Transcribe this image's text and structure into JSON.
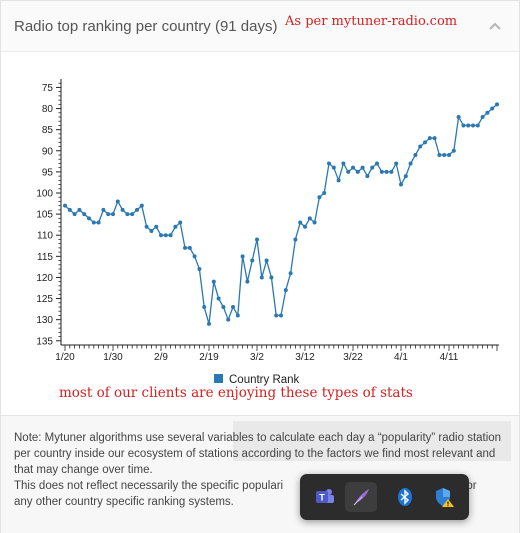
{
  "header": {
    "title": "Radio top ranking per country (91 days)",
    "annotation": "As per mytuner-radio.com"
  },
  "chart_annotation": "most of our clients are enjoying these types of stats",
  "note": {
    "line1": "Note: Mytuner algorithms use several variables to calculate each day a “popularity” radio station per country inside our ecosystem of stations according to the factors we find most relevant and that may change over time.",
    "line2_start": "This does not reflect necessarily the specific populari",
    "line2_end": "y, or",
    "line3": "any other country specific ranking systems."
  },
  "taskbar": {
    "icons": [
      "teams-icon",
      "feather-pen-icon",
      "bluetooth-icon",
      "security-warning-icon"
    ]
  },
  "colors": {
    "series": "#2a78b4",
    "annotation": "#d31f1f"
  },
  "chart_data": {
    "type": "line",
    "xlabel": "",
    "ylabel": "",
    "y_reversed": true,
    "ylim": [
      73,
      136
    ],
    "yticks": [
      75,
      80,
      85,
      90,
      95,
      100,
      105,
      110,
      115,
      120,
      125,
      130,
      135
    ],
    "xtick_labels": [
      "1/20",
      "1/30",
      "2/9",
      "2/19",
      "3/2",
      "3/12",
      "3/22",
      "4/1",
      "4/11"
    ],
    "legend": "bottom-center",
    "grid": false,
    "series": [
      {
        "name": "Country Rank",
        "x": [
          "1/20",
          "1/21",
          "1/22",
          "1/23",
          "1/24",
          "1/25",
          "1/26",
          "1/27",
          "1/28",
          "1/29",
          "1/30",
          "1/31",
          "2/1",
          "2/2",
          "2/3",
          "2/4",
          "2/5",
          "2/6",
          "2/7",
          "2/8",
          "2/9",
          "2/10",
          "2/11",
          "2/12",
          "2/13",
          "2/14",
          "2/15",
          "2/16",
          "2/17",
          "2/18",
          "2/19",
          "2/20",
          "2/21",
          "2/22",
          "2/23",
          "2/24",
          "2/25",
          "2/26",
          "2/27",
          "2/28",
          "2/29",
          "3/1",
          "3/2",
          "3/3",
          "3/4",
          "3/5",
          "3/6",
          "3/7",
          "3/8",
          "3/9",
          "3/10",
          "3/11",
          "3/12",
          "3/13",
          "3/14",
          "3/15",
          "3/16",
          "3/17",
          "3/18",
          "3/19",
          "3/20",
          "3/21",
          "3/22",
          "3/23",
          "3/24",
          "3/25",
          "3/26",
          "3/27",
          "3/28",
          "3/29",
          "3/30",
          "3/31",
          "4/1",
          "4/2",
          "4/3",
          "4/4",
          "4/5",
          "4/6",
          "4/7",
          "4/8",
          "4/9",
          "4/10",
          "4/11",
          "4/12",
          "4/13",
          "4/14",
          "4/15",
          "4/16",
          "4/17",
          "4/18",
          "4/19"
        ],
        "values": [
          103,
          104,
          105,
          104,
          105,
          106,
          107,
          107,
          104,
          105,
          105,
          102,
          104,
          105,
          105,
          104,
          103,
          108,
          109,
          108,
          110,
          110,
          110,
          108,
          107,
          113,
          113,
          115,
          118,
          127,
          131,
          121,
          125,
          127,
          130,
          127,
          129,
          115,
          121,
          116,
          111,
          120,
          116,
          120,
          129,
          129,
          123,
          119,
          111,
          107,
          108,
          106,
          107,
          101,
          100,
          93,
          94,
          97,
          93,
          95,
          94,
          95,
          94,
          96,
          94,
          93,
          95,
          95,
          95,
          93,
          98,
          96,
          93,
          91,
          89,
          88,
          87,
          87,
          91,
          91,
          91,
          90,
          82,
          84,
          84,
          84,
          84,
          82,
          81,
          80,
          79
        ]
      }
    ]
  }
}
